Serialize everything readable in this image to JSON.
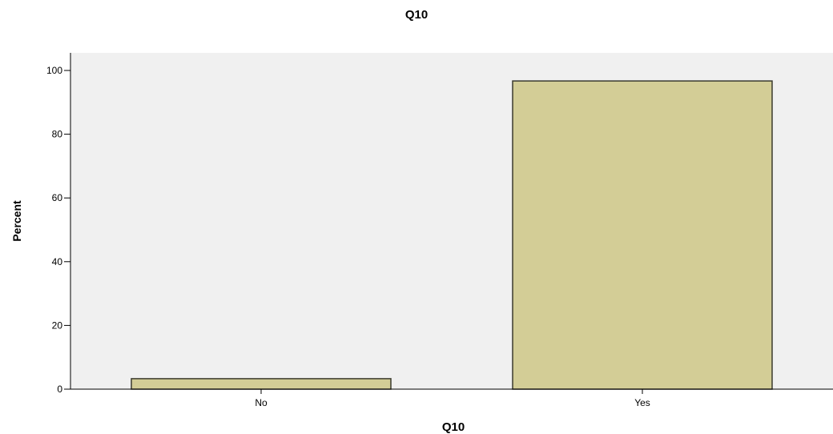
{
  "chart_data": {
    "type": "bar",
    "title": "Q10",
    "xlabel": "Q10",
    "ylabel": "Percent",
    "categories": [
      "No",
      "Yes"
    ],
    "values": [
      3.3,
      96.7
    ],
    "ylim": [
      0,
      105
    ],
    "yticks": [
      "0",
      "20",
      "40",
      "60",
      "80",
      "100"
    ],
    "grid": false,
    "legend": "none",
    "colors": {
      "bar_fill": "#d3cd96",
      "bar_stroke": "#3a3a2e",
      "plot_background": "#f0f0f0",
      "axis": "#000000"
    }
  }
}
